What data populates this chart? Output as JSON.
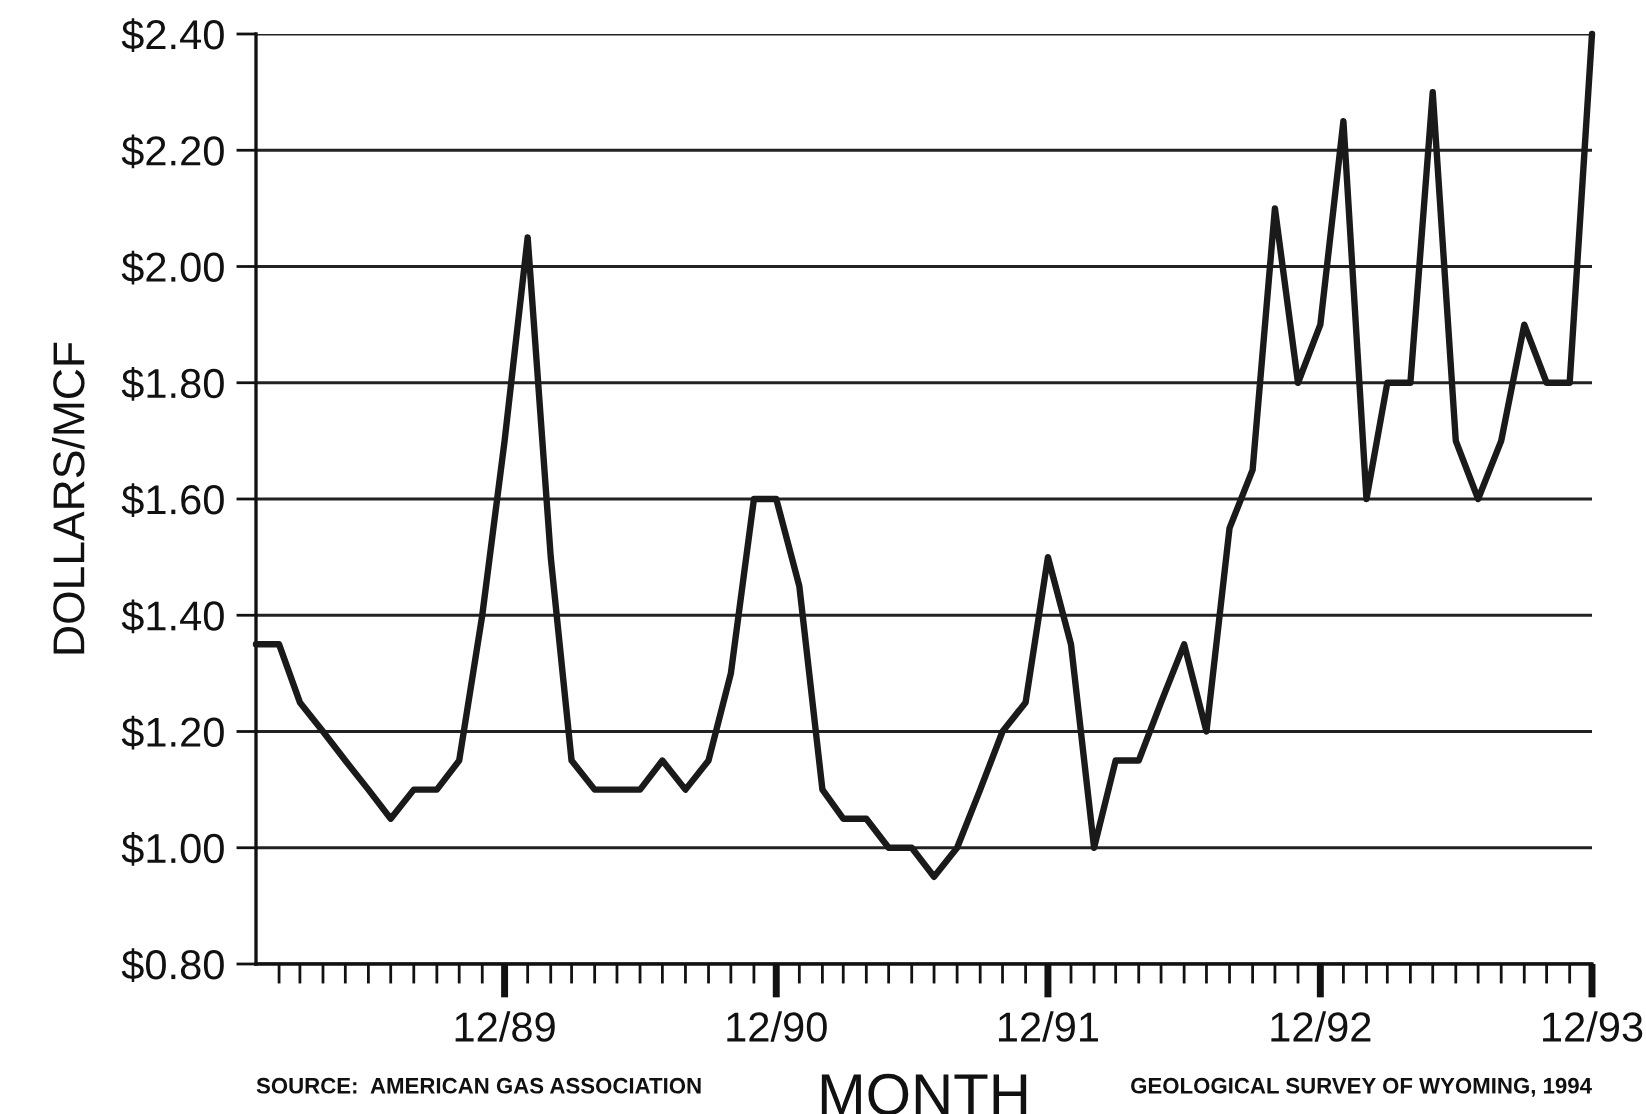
{
  "chart_data": {
    "type": "line",
    "xlabel": "MONTH",
    "ylabel": "DOLLARS/MCF",
    "annotations": [
      "SOURCE:  AMERICAN GAS ASSOCIATION",
      "GEOLOGICAL SURVEY OF WYOMING, 1994"
    ],
    "x": [
      "1989-01",
      "1989-02",
      "1989-03",
      "1989-04",
      "1989-05",
      "1989-06",
      "1989-07",
      "1989-08",
      "1989-09",
      "1989-10",
      "1989-11",
      "1989-12",
      "1990-01",
      "1990-02",
      "1990-03",
      "1990-04",
      "1990-05",
      "1990-06",
      "1990-07",
      "1990-08",
      "1990-09",
      "1990-10",
      "1990-11",
      "1990-12",
      "1991-01",
      "1991-02",
      "1991-03",
      "1991-04",
      "1991-05",
      "1991-06",
      "1991-07",
      "1991-08",
      "1991-09",
      "1991-10",
      "1991-11",
      "1991-12",
      "1992-01",
      "1992-02",
      "1992-03",
      "1992-04",
      "1992-05",
      "1992-06",
      "1992-07",
      "1992-08",
      "1992-09",
      "1992-10",
      "1992-11",
      "1992-12",
      "1993-01",
      "1993-02",
      "1993-03",
      "1993-04",
      "1993-05",
      "1993-06",
      "1993-07",
      "1993-08",
      "1993-09",
      "1993-10",
      "1993-11",
      "1993-12"
    ],
    "values": [
      1.35,
      1.35,
      1.25,
      1.2,
      1.15,
      1.1,
      1.05,
      1.1,
      1.1,
      1.15,
      1.4,
      1.7,
      2.05,
      1.5,
      1.15,
      1.1,
      1.1,
      1.1,
      1.15,
      1.1,
      1.15,
      1.3,
      1.6,
      1.6,
      1.45,
      1.1,
      1.05,
      1.05,
      1.0,
      1.0,
      0.95,
      1.0,
      1.1,
      1.2,
      1.25,
      1.5,
      1.35,
      1.0,
      1.15,
      1.15,
      1.25,
      1.35,
      1.2,
      1.55,
      1.65,
      2.1,
      1.8,
      1.9,
      2.25,
      1.6,
      1.8,
      1.8,
      2.3,
      1.7,
      1.6,
      1.7,
      1.9,
      1.8,
      1.8,
      2.4
    ],
    "color": "#1a1a1a",
    "xlim": [
      "1989-01",
      "1993-12"
    ],
    "xticks": [
      {
        "value": "1989-02",
        "label": null
      },
      {
        "value": "1989-03",
        "label": null
      },
      {
        "value": "1989-04",
        "label": null
      },
      {
        "value": "1989-05",
        "label": null
      },
      {
        "value": "1989-06",
        "label": null
      },
      {
        "value": "1989-07",
        "label": null
      },
      {
        "value": "1989-08",
        "label": null
      },
      {
        "value": "1989-09",
        "label": null
      },
      {
        "value": "1989-10",
        "label": null
      },
      {
        "value": "1989-11",
        "label": null
      },
      {
        "value": "1989-12",
        "label": "12/89"
      },
      {
        "value": "1990-01",
        "label": null
      },
      {
        "value": "1990-02",
        "label": null
      },
      {
        "value": "1990-03",
        "label": null
      },
      {
        "value": "1990-04",
        "label": null
      },
      {
        "value": "1990-05",
        "label": null
      },
      {
        "value": "1990-06",
        "label": null
      },
      {
        "value": "1990-07",
        "label": null
      },
      {
        "value": "1990-08",
        "label": null
      },
      {
        "value": "1990-09",
        "label": null
      },
      {
        "value": "1990-10",
        "label": null
      },
      {
        "value": "1990-11",
        "label": null
      },
      {
        "value": "1990-12",
        "label": "12/90"
      },
      {
        "value": "1991-01",
        "label": null
      },
      {
        "value": "1991-02",
        "label": null
      },
      {
        "value": "1991-03",
        "label": null
      },
      {
        "value": "1991-04",
        "label": null
      },
      {
        "value": "1991-05",
        "label": null
      },
      {
        "value": "1991-06",
        "label": null
      },
      {
        "value": "1991-07",
        "label": null
      },
      {
        "value": "1991-08",
        "label": null
      },
      {
        "value": "1991-09",
        "label": null
      },
      {
        "value": "1991-10",
        "label": null
      },
      {
        "value": "1991-11",
        "label": null
      },
      {
        "value": "1991-12",
        "label": "12/91"
      },
      {
        "value": "1992-01",
        "label": null
      },
      {
        "value": "1992-02",
        "label": null
      },
      {
        "value": "1992-03",
        "label": null
      },
      {
        "value": "1992-04",
        "label": null
      },
      {
        "value": "1992-05",
        "label": null
      },
      {
        "value": "1992-06",
        "label": null
      },
      {
        "value": "1992-07",
        "label": null
      },
      {
        "value": "1992-08",
        "label": null
      },
      {
        "value": "1992-09",
        "label": null
      },
      {
        "value": "1992-10",
        "label": null
      },
      {
        "value": "1992-11",
        "label": null
      },
      {
        "value": "1992-12",
        "label": "12/92"
      },
      {
        "value": "1993-01",
        "label": null
      },
      {
        "value": "1993-02",
        "label": null
      },
      {
        "value": "1993-03",
        "label": null
      },
      {
        "value": "1993-04",
        "label": null
      },
      {
        "value": "1993-05",
        "label": null
      },
      {
        "value": "1993-06",
        "label": null
      },
      {
        "value": "1993-07",
        "label": null
      },
      {
        "value": "1993-08",
        "label": null
      },
      {
        "value": "1993-09",
        "label": null
      },
      {
        "value": "1993-10",
        "label": null
      },
      {
        "value": "1993-11",
        "label": null
      },
      {
        "value": "1993-12",
        "label": "12/93"
      }
    ],
    "ylim": [
      0.8,
      2.4
    ],
    "yticks": [
      {
        "value": 0.8,
        "label": "$0.80"
      },
      {
        "value": 1.0,
        "label": "$1.00"
      },
      {
        "value": 1.2,
        "label": "$1.20"
      },
      {
        "value": 1.4,
        "label": "$1.40"
      },
      {
        "value": 1.6,
        "label": "$1.60"
      },
      {
        "value": 1.8,
        "label": "$1.80"
      },
      {
        "value": 2.0,
        "label": "$2.00"
      },
      {
        "value": 2.2,
        "label": "$2.20"
      },
      {
        "value": 2.4,
        "label": "$2.40"
      }
    ],
    "grid": "y"
  }
}
